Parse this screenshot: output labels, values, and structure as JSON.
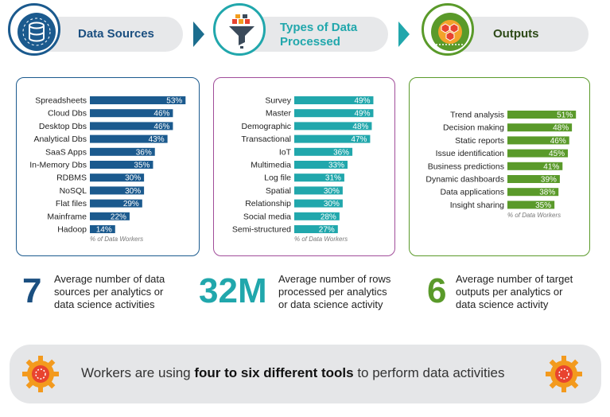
{
  "header": {
    "sources_label": "Data Sources",
    "types_label_line1": "Types of Data",
    "types_label_line2": "Processed",
    "outputs_label": "Outputs"
  },
  "colors": {
    "sources": "#1b5a8e",
    "types": "#21a7ac",
    "outputs": "#5a9a2a",
    "types_border": "#a14d9a"
  },
  "chart_data": [
    {
      "type": "bar",
      "categories": [
        "Spreadsheets",
        "Cloud Dbs",
        "Desktop Dbs",
        "Analytical Dbs",
        "SaaS Apps",
        "In-Memory Dbs",
        "RDBMS",
        "NoSQL",
        "Flat files",
        "Mainframe",
        "Hadoop"
      ],
      "values": [
        53,
        46,
        46,
        43,
        36,
        35,
        30,
        30,
        29,
        22,
        14
      ],
      "value_labels": [
        "53%",
        "46%",
        "46%",
        "43%",
        "36%",
        "35%",
        "30%",
        "30%",
        "29%",
        "22%",
        "14%"
      ],
      "caption": "% of Data Workers",
      "orientation": "horizontal"
    },
    {
      "type": "bar",
      "categories": [
        "Survey",
        "Master",
        "Demographic",
        "Transactional",
        "IoT",
        "Multimedia",
        "Log file",
        "Spatial",
        "Relationship",
        "Social media",
        "Semi-structured"
      ],
      "values": [
        49,
        49,
        48,
        47,
        36,
        33,
        31,
        30,
        30,
        28,
        27
      ],
      "value_labels": [
        "49%",
        "49%",
        "48%",
        "47%",
        "36%",
        "33%",
        "31%",
        "30%",
        "30%",
        "28%",
        "27%"
      ],
      "caption": "% of Data Workers",
      "orientation": "horizontal"
    },
    {
      "type": "bar",
      "categories": [
        "Trend analysis",
        "Decision making",
        "Static reports",
        "Issue identification",
        "Business predictions",
        "Dynamic dashboards",
        "Data applications",
        "Insight sharing"
      ],
      "values": [
        51,
        48,
        46,
        45,
        41,
        39,
        38,
        35
      ],
      "value_labels": [
        "51%",
        "48%",
        "46%",
        "45%",
        "41%",
        "39%",
        "38%",
        "35%"
      ],
      "caption": "% of Data Workers",
      "orientation": "horizontal"
    }
  ],
  "stats": {
    "sources_number": "7",
    "sources_l1": "Average number of data",
    "sources_l2": "sources per analytics or",
    "sources_l3": "data science activities",
    "rows_number": "32M",
    "rows_l1": "Average number of rows",
    "rows_l2": "processed per analytics",
    "rows_l3": "or data science activity",
    "outputs_number": "6",
    "outputs_l1": "Average number of target",
    "outputs_l2": "outputs per analytics or",
    "outputs_l3": "data science activity"
  },
  "footer": {
    "text_before": "Workers are using ",
    "text_bold": "four to six different tools",
    "text_after": " to perform data activities"
  },
  "icons": [
    "database-icon",
    "funnel-icon",
    "hexagon-network-icon",
    "gear-icon"
  ]
}
